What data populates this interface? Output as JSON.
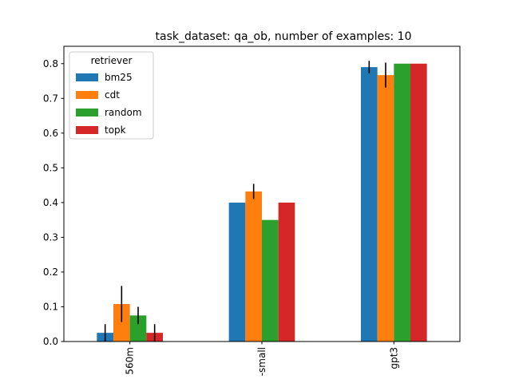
{
  "chart_data": {
    "type": "bar",
    "title": "task_dataset: qa_ob, number of examples: 10",
    "xlabel": "",
    "ylabel": "",
    "categories": [
      "560m",
      "-small",
      "gpt3"
    ],
    "ylim": [
      0,
      0.85
    ],
    "yticks": [
      "0.0",
      "0.1",
      "0.2",
      "0.3",
      "0.4",
      "0.5",
      "0.6",
      "0.7",
      "0.8"
    ],
    "grid": false,
    "legend": {
      "title": "retriever",
      "placement": "top-left"
    },
    "series": [
      {
        "name": "bm25",
        "color": "#1f77b4",
        "values": [
          0.025,
          0.4,
          0.79
        ],
        "errors": [
          0.025,
          null,
          0.018
        ]
      },
      {
        "name": "cdt",
        "color": "#ff7f0e",
        "values": [
          0.108,
          0.432,
          0.767
        ],
        "errors": [
          0.052,
          0.022,
          0.036
        ]
      },
      {
        "name": "random",
        "color": "#2ca02c",
        "values": [
          0.075,
          0.35,
          0.8
        ],
        "errors": [
          0.025,
          null,
          null
        ]
      },
      {
        "name": "topk",
        "color": "#d62728",
        "values": [
          0.025,
          0.4,
          0.8
        ],
        "errors": [
          0.025,
          null,
          null
        ]
      }
    ]
  }
}
